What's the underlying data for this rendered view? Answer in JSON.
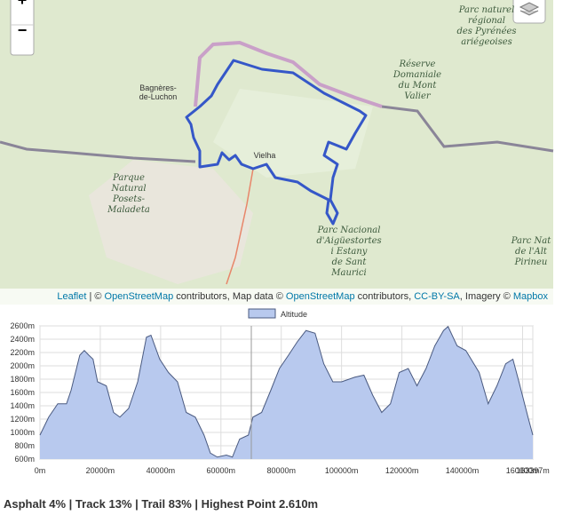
{
  "map": {
    "zoom_in": "+",
    "zoom_out": "−",
    "labels": [
      {
        "lines": [
          "Parc naturel",
          "régional",
          "des Pyrénées",
          "ariégeoises"
        ],
        "style": "park"
      },
      {
        "lines": [
          "Réserve",
          "Domaniale",
          "du Mont",
          "Valier"
        ],
        "style": "park"
      },
      {
        "lines": [
          "Bagnères-",
          "de-Luchon"
        ],
        "style": "town"
      },
      {
        "lines": [
          "Vielha"
        ],
        "style": "town"
      },
      {
        "lines": [
          "Parque",
          "Natural",
          "Posets-",
          "Maladeta"
        ],
        "style": "park"
      },
      {
        "lines": [
          "Parc Nacional",
          "d'Aigüestortes",
          "i Estany",
          "de Sant",
          "Maurici"
        ],
        "style": "park"
      },
      {
        "lines": [
          "Parc Nat",
          "de l'Alt",
          "Pirineu"
        ],
        "style": "park"
      }
    ],
    "attribution": [
      {
        "text": "Leaflet",
        "link": true
      },
      {
        "text": " | © ",
        "link": false
      },
      {
        "text": "OpenStreetMap",
        "link": true
      },
      {
        "text": " contributors, Map data © ",
        "link": false
      },
      {
        "text": "OpenStreetMap",
        "link": true
      },
      {
        "text": " contributors, ",
        "link": false
      },
      {
        "text": "CC-BY-SA",
        "link": true
      },
      {
        "text": ", Imagery © ",
        "link": false
      },
      {
        "text": "Mapbox",
        "link": true
      }
    ]
  },
  "chart_data": {
    "type": "area",
    "x": [
      0,
      2900,
      5900,
      8800,
      10300,
      13200,
      14700,
      16200,
      17600,
      19100,
      22000,
      24400,
      26500,
      29400,
      32400,
      35300,
      36800,
      39700,
      42600,
      45600,
      48500,
      51500,
      54400,
      56500,
      58800,
      61800,
      63800,
      66200,
      69100,
      70600,
      73500,
      76500,
      79400,
      82400,
      85300,
      88200,
      91200,
      94100,
      97100,
      100000,
      104400,
      107400,
      110300,
      113300,
      116200,
      119100,
      122100,
      125000,
      128000,
      130900,
      133800,
      135300,
      138300,
      141200,
      145600,
      148600,
      151500,
      154400,
      156800,
      158800,
      161800,
      163397
    ],
    "series": [
      {
        "name": "Altitude",
        "color": "#b8c9ee",
        "values": [
          960,
          1230,
          1430,
          1430,
          1630,
          2160,
          2230,
          2160,
          2100,
          1760,
          1700,
          1300,
          1230,
          1360,
          1760,
          2430,
          2460,
          2100,
          1900,
          1760,
          1300,
          1230,
          960,
          690,
          630,
          660,
          630,
          900,
          960,
          1230,
          1300,
          1630,
          1960,
          2160,
          2360,
          2530,
          2490,
          2030,
          1760,
          1760,
          1830,
          1860,
          1560,
          1300,
          1430,
          1900,
          1960,
          1700,
          1960,
          2300,
          2530,
          2590,
          2300,
          2230,
          1900,
          1430,
          1700,
          2030,
          2100,
          1760,
          1230,
          960
        ]
      }
    ],
    "xlim": [
      0,
      163397
    ],
    "ylim": [
      600,
      2600
    ],
    "xticks": [
      {
        "value": 0,
        "label": "0m"
      },
      {
        "value": 20000,
        "label": "20000m"
      },
      {
        "value": 40000,
        "label": "40000m"
      },
      {
        "value": 60000,
        "label": "60000m"
      },
      {
        "value": 80000,
        "label": "80000m"
      },
      {
        "value": 100000,
        "label": "100000m"
      },
      {
        "value": 120000,
        "label": "120000m"
      },
      {
        "value": 140000,
        "label": "140000m"
      },
      {
        "value": 160000,
        "label": "160000m"
      },
      {
        "value": 163397,
        "label": "163397m"
      }
    ],
    "yticks": [
      {
        "value": 600,
        "label": "600m"
      },
      {
        "value": 800,
        "label": "800m"
      },
      {
        "value": 1000,
        "label": "1000m"
      },
      {
        "value": 1200,
        "label": "1200m"
      },
      {
        "value": 1400,
        "label": "1400m"
      },
      {
        "value": 1600,
        "label": "1600m"
      },
      {
        "value": 1800,
        "label": "1800m"
      },
      {
        "value": 2000,
        "label": "2000m"
      },
      {
        "value": 2200,
        "label": "2200m"
      },
      {
        "value": 2400,
        "label": "2400m"
      },
      {
        "value": 2600,
        "label": "2600m"
      }
    ],
    "grid": true,
    "legend": "top"
  },
  "footer": "Asphalt 4% | Track 13% | Trail 83% | Highest Point 2.610m"
}
